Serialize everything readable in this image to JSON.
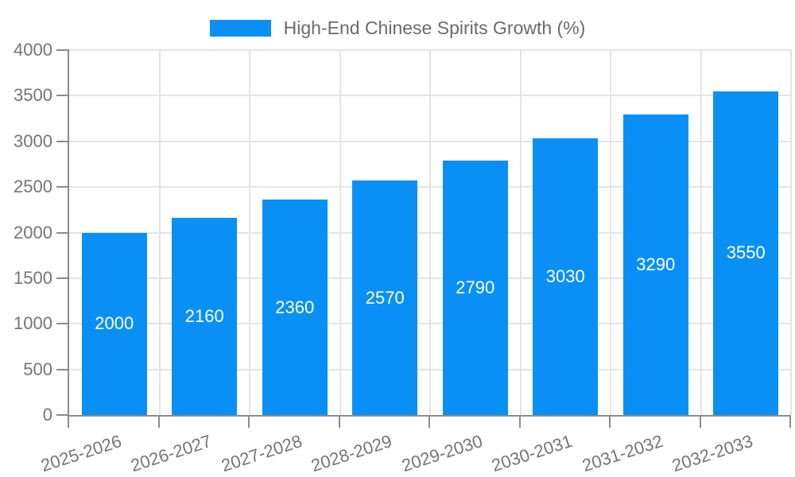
{
  "chart_data": {
    "type": "bar",
    "title": "",
    "legend": {
      "label": "High-End Chinese Spirits Growth (%)",
      "position": "top"
    },
    "categories": [
      "2025-2026",
      "2026-2027",
      "2027-2028",
      "2028-2029",
      "2029-2030",
      "2030-2031",
      "2031-2032",
      "2032-2033"
    ],
    "series": [
      {
        "name": "High-End Chinese Spirits Growth (%)",
        "values": [
          2000,
          2160,
          2360,
          2570,
          2790,
          3030,
          3290,
          3550
        ]
      }
    ],
    "xlabel": "",
    "ylabel": "",
    "ylim": [
      0,
      4000
    ],
    "yticks": [
      0,
      500,
      1000,
      1500,
      2000,
      2500,
      3000,
      3500,
      4000
    ],
    "grid": true,
    "value_label_position": "inside-center",
    "x_label_rotation_deg": 18,
    "colors": {
      "bar": "#0A90F5",
      "axis_line": "#8c8c8c",
      "grid_line": "#e4e4e4",
      "axis_text": "#757575",
      "legend_text": "#6b6b6b",
      "value_text": "#ffffff",
      "background": "#ffffff"
    }
  }
}
